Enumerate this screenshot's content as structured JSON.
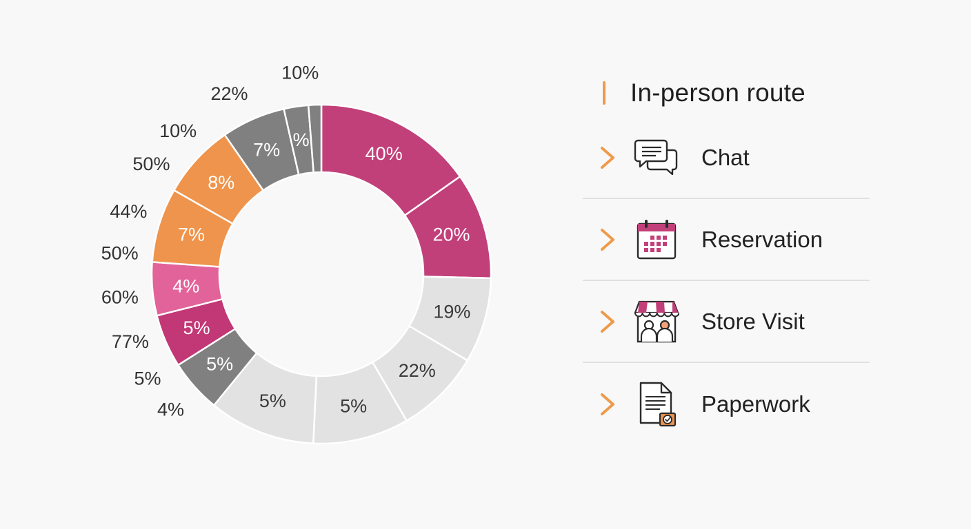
{
  "chart_data": {
    "type": "pie",
    "segments": [
      {
        "label": "40%",
        "value": 15,
        "color": "#c2407a"
      },
      {
        "label": "20%",
        "value": 10,
        "color": "#c2407a"
      },
      {
        "label": "19%",
        "value": 8,
        "color": "#e2e2e2"
      },
      {
        "label": "22%",
        "value": 8,
        "color": "#e2e2e2"
      },
      {
        "label": "5%",
        "value": 9,
        "color": "#e2e2e2"
      },
      {
        "label": "5%",
        "value": 10,
        "color": "#e2e2e2"
      },
      {
        "label": "5%",
        "value": 5,
        "color": "#808080"
      },
      {
        "label": "5%",
        "value": 5,
        "color": "#c23775"
      },
      {
        "label": "4%",
        "value": 5,
        "color": "#e2639a"
      },
      {
        "label": "7%",
        "value": 7,
        "color": "#ef944c"
      },
      {
        "label": "8%",
        "value": 7,
        "color": "#ef944c"
      },
      {
        "label": "7%",
        "value": 6,
        "color": "#808080"
      },
      {
        "label": "%",
        "value": 2.3,
        "color": "#808080"
      },
      {
        "label": "",
        "value": 1.2,
        "color": "#808080"
      }
    ],
    "outer_labels": [
      {
        "text": "10%",
        "angle": 354
      },
      {
        "text": "22%",
        "angle": 333
      },
      {
        "text": "10%",
        "angle": 315
      },
      {
        "text": "50%",
        "angle": 303
      },
      {
        "text": "44%",
        "angle": 288
      },
      {
        "text": "50%",
        "angle": 276
      },
      {
        "text": "60%",
        "angle": 263.5
      },
      {
        "text": "77%",
        "angle": 250.5
      },
      {
        "text": "5%",
        "angle": 239
      },
      {
        "text": "4%",
        "angle": 228
      }
    ]
  },
  "legend": {
    "title": "In-person route",
    "items": [
      {
        "label": "Chat",
        "icon": "chat-bubbles-icon"
      },
      {
        "label": "Reservation",
        "icon": "calendar-icon"
      },
      {
        "label": "Store Visit",
        "icon": "store-people-icon"
      },
      {
        "label": "Paperwork",
        "icon": "document-check-icon"
      }
    ]
  },
  "colors": {
    "accent": "#ef9a4a",
    "magenta": "#c2407a",
    "orange": "#ef944c",
    "gray": "#808080",
    "light_gray": "#e2e2e2",
    "pink": "#e2639a"
  }
}
